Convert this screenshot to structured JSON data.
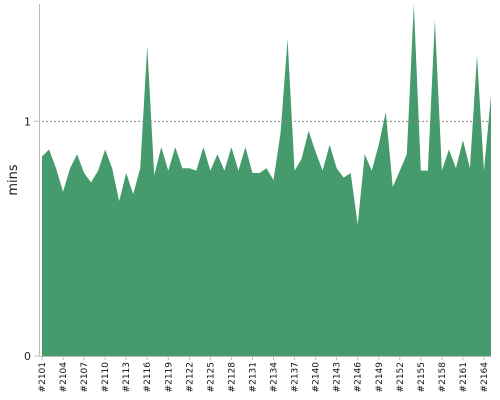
{
  "chart_data": {
    "type": "area",
    "title": "",
    "xlabel": "",
    "ylabel": "mins",
    "ylim": [
      0,
      1.5
    ],
    "yticks": [
      0,
      1
    ],
    "ytick_labels": [
      "0",
      "1"
    ],
    "reference_line": {
      "y": 1,
      "style": "dotted"
    },
    "grid": false,
    "colors": {
      "fill": "#469b6c",
      "axis": "#bbbbbb",
      "reference": "#888888"
    },
    "x": [
      "#2101",
      "#2102",
      "#2103",
      "#2104",
      "#2105",
      "#2106",
      "#2107",
      "#2108",
      "#2109",
      "#2110",
      "#2111",
      "#2112",
      "#2113",
      "#2114",
      "#2115",
      "#2116",
      "#2117",
      "#2118",
      "#2119",
      "#2120",
      "#2121",
      "#2122",
      "#2123",
      "#2124",
      "#2125",
      "#2126",
      "#2127",
      "#2128",
      "#2129",
      "#2130",
      "#2131",
      "#2132",
      "#2133",
      "#2134",
      "#2135",
      "#2136",
      "#2137",
      "#2138",
      "#2139",
      "#2140",
      "#2141",
      "#2142",
      "#2143",
      "#2144",
      "#2145",
      "#2146",
      "#2147",
      "#2148",
      "#2149",
      "#2150",
      "#2151",
      "#2152",
      "#2153",
      "#2154",
      "#2155",
      "#2156",
      "#2157",
      "#2158",
      "#2159",
      "#2160",
      "#2161",
      "#2162",
      "#2163",
      "#2164",
      "#2165"
    ],
    "x_tick_labels": [
      "#2101",
      "#2104",
      "#2107",
      "#2110",
      "#2113",
      "#2116",
      "#2119",
      "#2122",
      "#2125",
      "#2128",
      "#2131",
      "#2134",
      "#2137",
      "#2140",
      "#2143",
      "#2146",
      "#2149",
      "#2152",
      "#2155",
      "#2158",
      "#2161",
      "#2164"
    ],
    "series": [
      {
        "values": [
          0.85,
          0.88,
          0.8,
          0.7,
          0.8,
          0.86,
          0.78,
          0.74,
          0.79,
          0.88,
          0.8,
          0.66,
          0.78,
          0.69,
          0.8,
          1.32,
          0.77,
          0.89,
          0.79,
          0.89,
          0.8,
          0.8,
          0.79,
          0.89,
          0.79,
          0.86,
          0.79,
          0.89,
          0.79,
          0.89,
          0.78,
          0.78,
          0.8,
          0.75,
          0.95,
          1.35,
          0.79,
          0.84,
          0.96,
          0.87,
          0.79,
          0.9,
          0.8,
          0.76,
          0.78,
          0.56,
          0.86,
          0.79,
          0.9,
          1.04,
          0.72,
          0.79,
          0.86,
          1.5,
          0.79,
          0.79,
          1.43,
          0.79,
          0.88,
          0.8,
          0.92,
          0.8,
          1.28,
          0.79,
          1.11
        ]
      }
    ]
  }
}
